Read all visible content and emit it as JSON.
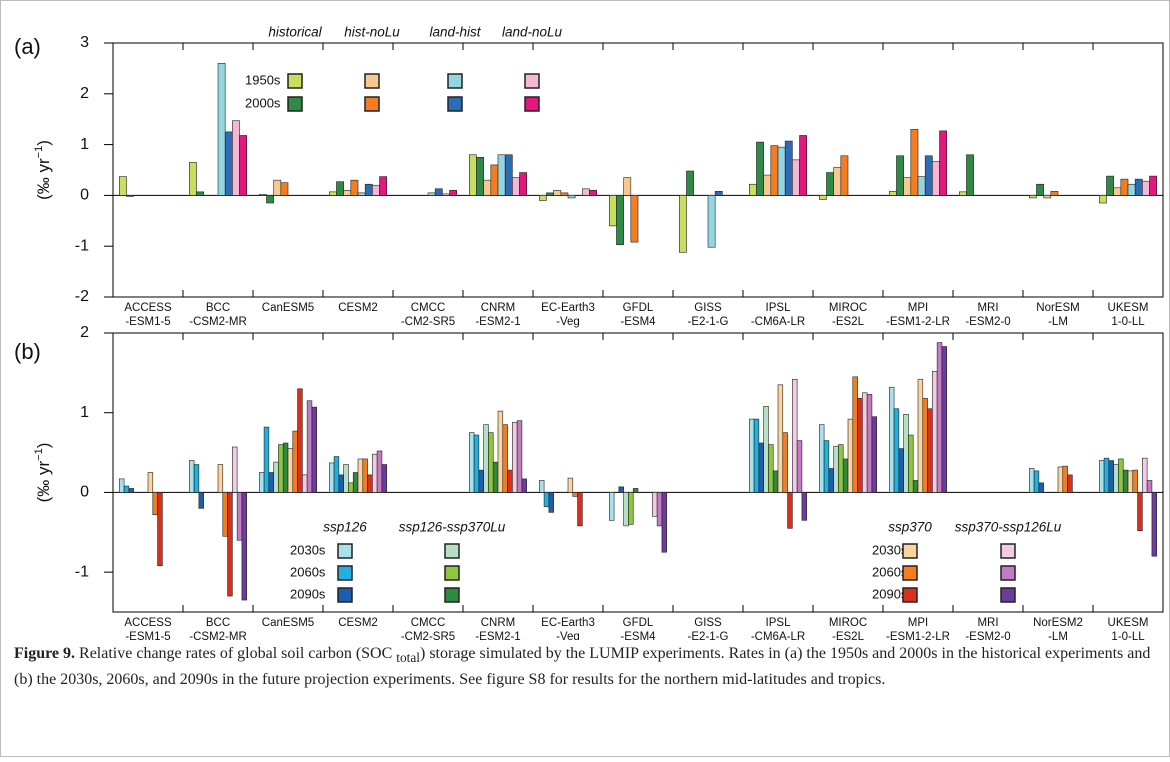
{
  "chart_data": [
    {
      "type": "bar",
      "panel_label": "(a)",
      "categories": [
        [
          "ACCESS",
          "-ESM1-5"
        ],
        [
          "BCC",
          "-CSM2-MR"
        ],
        [
          "CanESM5"
        ],
        [
          "CESM2"
        ],
        [
          "CMCC",
          "-CM2-SR5"
        ],
        [
          "CNRM",
          "-ESM2-1"
        ],
        [
          "EC-Earth3",
          "-Veg"
        ],
        [
          "GFDL",
          "-ESM4"
        ],
        [
          "GISS",
          "-E2-1-G"
        ],
        [
          "IPSL",
          "-CM6A-LR"
        ],
        [
          "MIROC",
          "-ES2L"
        ],
        [
          "MPI",
          "-ESM1-2-LR"
        ],
        [
          "MRI",
          "-ESM2-0"
        ],
        [
          "NorESM",
          "-LM"
        ],
        [
          "UKESM",
          "1-0-LL"
        ]
      ],
      "periods": [
        "1950s",
        "2000s"
      ],
      "series": [
        {
          "name": "historical",
          "colors": [
            "#c6df5c",
            "#2f8a45"
          ],
          "values": [
            [
              0.37,
              0.65,
              0.02,
              0.07,
              null,
              0.8,
              -0.1,
              -0.6,
              -1.12,
              0.22,
              -0.08,
              0.08,
              0.07,
              -0.05,
              -0.15
            ],
            [
              -0.02,
              0.07,
              -0.15,
              0.27,
              null,
              0.75,
              0.05,
              -0.97,
              0.48,
              1.05,
              0.45,
              0.78,
              0.8,
              0.22,
              0.38
            ]
          ]
        },
        {
          "name": "hist-noLu",
          "colors": [
            "#f9c891",
            "#f47d22"
          ],
          "values": [
            [
              null,
              null,
              0.3,
              0.1,
              null,
              0.3,
              0.1,
              0.35,
              null,
              0.4,
              0.55,
              0.35,
              null,
              -0.05,
              0.15
            ],
            [
              null,
              null,
              0.25,
              0.3,
              null,
              0.6,
              0.05,
              -0.92,
              null,
              0.98,
              0.78,
              1.3,
              null,
              0.08,
              0.32
            ]
          ]
        },
        {
          "name": "land-hist",
          "colors": [
            "#94d5e2",
            "#2b6cb4"
          ],
          "values": [
            [
              null,
              2.6,
              null,
              0.05,
              0.05,
              0.8,
              -0.05,
              null,
              -1.02,
              0.95,
              null,
              0.37,
              null,
              null,
              0.22
            ],
            [
              null,
              1.25,
              null,
              0.22,
              0.13,
              0.8,
              0.0,
              null,
              0.08,
              1.07,
              null,
              0.78,
              null,
              null,
              0.32
            ]
          ]
        },
        {
          "name": "land-noLu",
          "colors": [
            "#f4b8d2",
            "#e3187c"
          ],
          "values": [
            [
              null,
              1.47,
              null,
              0.2,
              0.03,
              0.35,
              0.13,
              null,
              null,
              0.7,
              null,
              0.67,
              null,
              null,
              0.28
            ],
            [
              null,
              1.18,
              null,
              0.37,
              0.1,
              0.45,
              0.1,
              null,
              null,
              1.18,
              null,
              1.27,
              null,
              null,
              0.38
            ]
          ]
        }
      ],
      "ylim": [
        -2,
        3
      ],
      "yticks": [
        -2,
        -1,
        0,
        1,
        2,
        3
      ],
      "y_label": [
        "(‰ yr",
        "−1",
        ")"
      ]
    },
    {
      "type": "bar",
      "panel_label": "(b)",
      "categories": [
        [
          "ACCESS",
          "-ESM1-5"
        ],
        [
          "BCC",
          "-CSM2-MR"
        ],
        [
          "CanESM5"
        ],
        [
          "CESM2"
        ],
        [
          "CMCC",
          "-CM2-SR5"
        ],
        [
          "CNRM",
          "-ESM2-1"
        ],
        [
          "EC-Earth3",
          "-Veg"
        ],
        [
          "GFDL",
          "-ESM4"
        ],
        [
          "GISS",
          "-E2-1-G"
        ],
        [
          "IPSL",
          "-CM6A-LR"
        ],
        [
          "MIROC",
          "-ES2L"
        ],
        [
          "MPI",
          "-ESM1-2-LR"
        ],
        [
          "MRI",
          "-ESM2-0"
        ],
        [
          "NorESM2",
          "-LM"
        ],
        [
          "UKESM",
          "1-0-LL"
        ]
      ],
      "periods": [
        "2030s",
        "2060s",
        "2090s"
      ],
      "series": [
        {
          "name": "ssp126",
          "colors": [
            "#a9e1eb",
            "#21b1e0",
            "#1f5eae"
          ],
          "values": [
            [
              0.17,
              0.4,
              0.25,
              0.37,
              null,
              0.75,
              0.15,
              -0.35,
              null,
              0.92,
              0.85,
              1.32,
              null,
              0.3,
              0.4
            ],
            [
              0.08,
              0.35,
              0.82,
              0.45,
              null,
              0.72,
              -0.18,
              0,
              null,
              0.92,
              0.65,
              1.05,
              null,
              0.27,
              0.43
            ],
            [
              0.05,
              -0.2,
              0.25,
              0.22,
              null,
              0.28,
              -0.25,
              0.07,
              null,
              0.62,
              0.3,
              0.55,
              null,
              0.12,
              0.4
            ]
          ]
        },
        {
          "name": "ssp126-ssp370Lu",
          "colors": [
            "#b6e0c4",
            "#8dc63f",
            "#2e8a3e"
          ],
          "values": [
            [
              null,
              null,
              0.38,
              0.35,
              null,
              0.85,
              null,
              -0.42,
              null,
              1.08,
              0.58,
              0.98,
              null,
              null,
              0.35
            ],
            [
              null,
              null,
              0.6,
              0.12,
              null,
              0.75,
              null,
              -0.4,
              null,
              0.6,
              0.6,
              0.72,
              null,
              null,
              0.42
            ],
            [
              null,
              null,
              0.62,
              0.25,
              null,
              0.38,
              null,
              0.05,
              null,
              0.27,
              0.42,
              0.15,
              null,
              null,
              0.28
            ]
          ]
        },
        {
          "name": "ssp370",
          "colors": [
            "#fcd49d",
            "#f47d22",
            "#d8301f"
          ],
          "values": [
            [
              0.25,
              0.35,
              0.55,
              0.42,
              null,
              1.02,
              0.18,
              null,
              null,
              1.35,
              0.92,
              1.42,
              null,
              0.32,
              0.27
            ],
            [
              -0.28,
              -0.55,
              0.77,
              0.42,
              null,
              0.85,
              -0.05,
              null,
              null,
              0.75,
              1.45,
              1.18,
              null,
              0.33,
              0.28
            ],
            [
              -0.92,
              -1.3,
              1.3,
              0.22,
              null,
              0.28,
              -0.42,
              null,
              null,
              -0.45,
              1.18,
              1.05,
              null,
              0.22,
              -0.48
            ]
          ]
        },
        {
          "name": "ssp370-ssp126Lu",
          "colors": [
            "#f2cbe2",
            "#c27dc2",
            "#6a3d9a"
          ],
          "values": [
            [
              null,
              0.57,
              0.22,
              0.48,
              null,
              0.88,
              null,
              -0.3,
              null,
              1.42,
              1.25,
              1.52,
              null,
              null,
              0.43
            ],
            [
              null,
              -0.6,
              1.15,
              0.52,
              null,
              0.9,
              null,
              -0.42,
              null,
              0.65,
              1.23,
              1.88,
              null,
              null,
              0.15
            ],
            [
              null,
              -1.35,
              1.07,
              0.35,
              null,
              0.17,
              null,
              -0.75,
              null,
              -0.35,
              0.95,
              1.83,
              null,
              null,
              -0.8
            ]
          ]
        }
      ],
      "ylim": [
        -1.5,
        2
      ],
      "yticks": [
        -1,
        0,
        1,
        2
      ],
      "y_label": [
        "(‰ yr",
        "−1",
        ")"
      ]
    }
  ],
  "caption": {
    "label": "Figure 9.",
    "before": " Relative change rates of global soil carbon (SOC ",
    "sub": "total",
    "after": ") storage simulated by the LUMIP experiments. Rates in (a) the 1950s and 2000s in the historical experiments and (b) the 2030s, 2060s, and 2090s in the future projection experiments. See figure S8 for results for the northern mid-latitudes and tropics."
  }
}
